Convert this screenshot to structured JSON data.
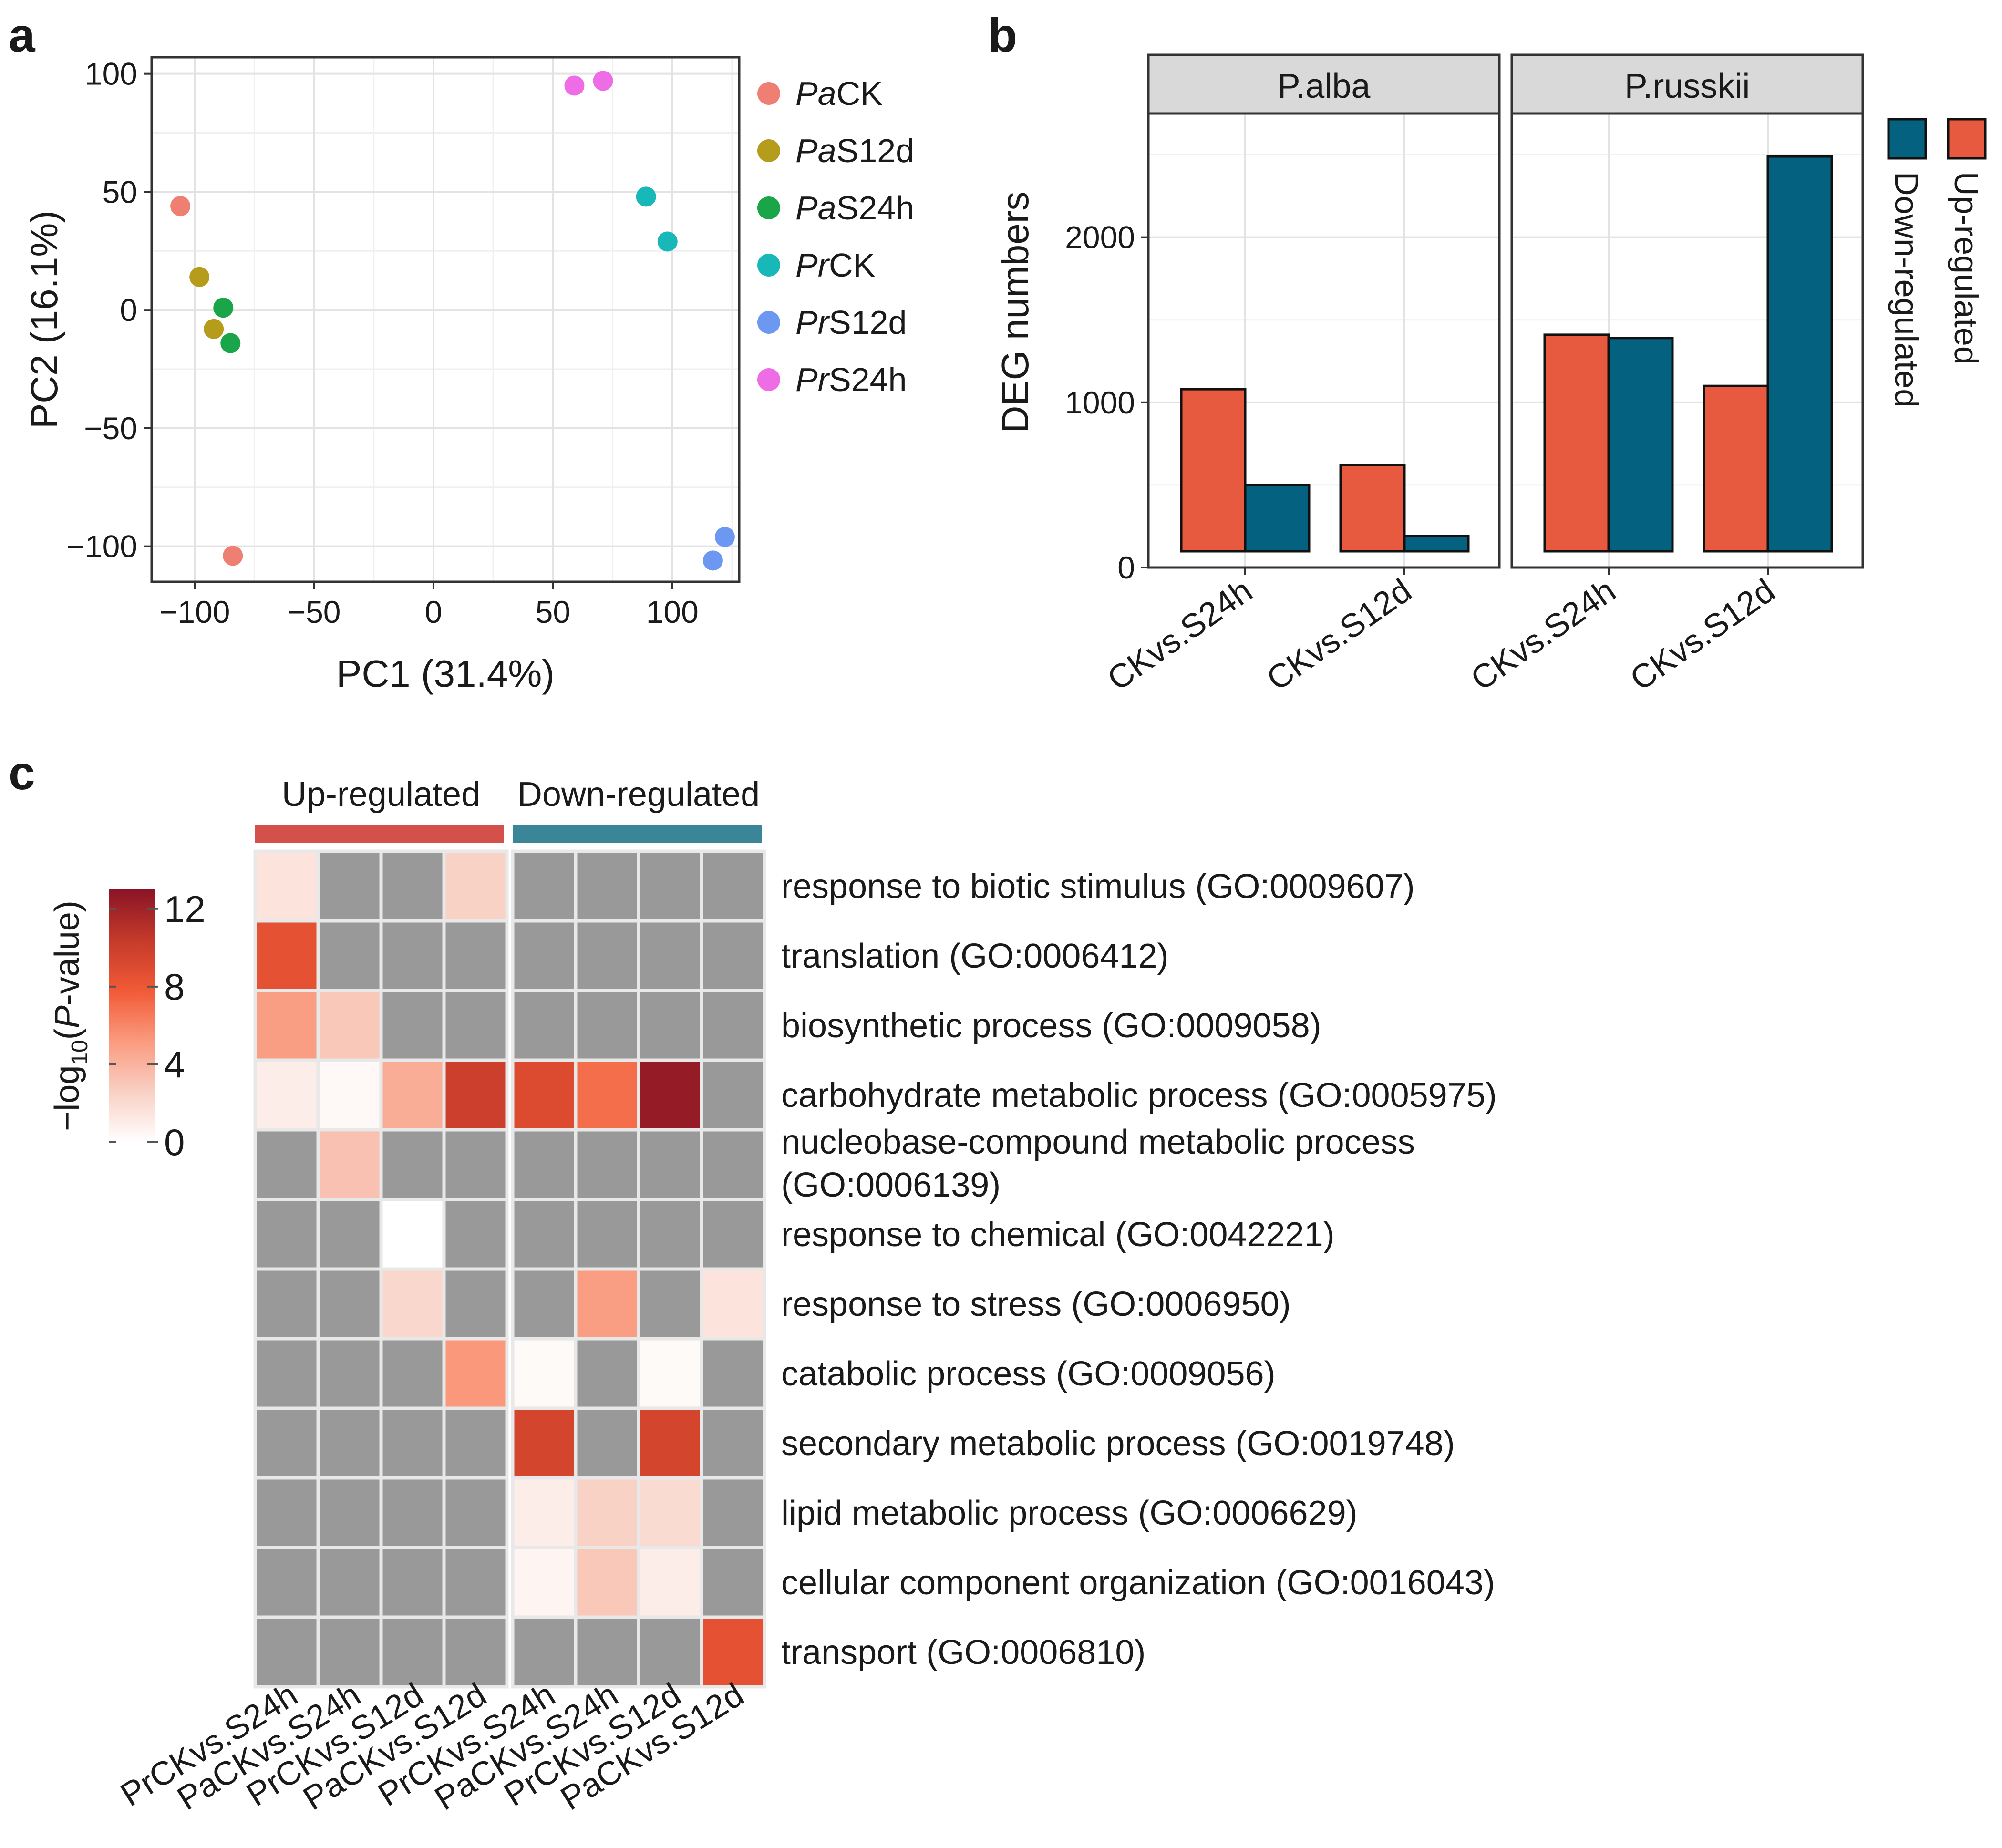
{
  "panel_labels": {
    "a": "a",
    "b": "b",
    "c": "c"
  },
  "chart_data": [
    {
      "type": "scatter",
      "panel": "a",
      "xlabel": "PC1 (31.4%)",
      "ylabel": "PC2 (16.1%)",
      "xlim": [
        -118,
        128
      ],
      "ylim": [
        -115,
        107
      ],
      "xticks": [
        -100,
        -50,
        0,
        50,
        100
      ],
      "yticks": [
        100,
        50,
        0,
        -50,
        -100
      ],
      "grid": true,
      "legend_position": "right",
      "series": [
        {
          "name": "PaCK",
          "italic": "Pa",
          "rest": "CK",
          "color": "#F07F73",
          "points": [
            [
              -106,
              44
            ],
            [
              -84,
              -104
            ]
          ]
        },
        {
          "name": "PaS12d",
          "italic": "Pa",
          "rest": "S12d",
          "color": "#B59C1A",
          "points": [
            [
              -98,
              14
            ],
            [
              -92,
              -8
            ]
          ]
        },
        {
          "name": "PaS24h",
          "italic": "Pa",
          "rest": "S24h",
          "color": "#1AA548",
          "points": [
            [
              -88,
              1
            ],
            [
              -85,
              -14
            ]
          ]
        },
        {
          "name": "PrCK",
          "italic": "Pr",
          "rest": "CK",
          "color": "#19B8B8",
          "points": [
            [
              89,
              48
            ],
            [
              98,
              29
            ]
          ]
        },
        {
          "name": "PrS12d",
          "italic": "Pr",
          "rest": "S12d",
          "color": "#6D98F2",
          "points": [
            [
              122,
              -96
            ],
            [
              117,
              -106
            ]
          ]
        },
        {
          "name": "PrS24h",
          "italic": "Pr",
          "rest": "S24h",
          "color": "#EE6CE6",
          "points": [
            [
              59,
              95
            ],
            [
              71,
              97
            ]
          ]
        }
      ]
    },
    {
      "type": "bar",
      "panel": "b",
      "ylabel": "DEG numbers",
      "ylim": [
        0,
        2750
      ],
      "yticks": [
        0,
        1000,
        2000
      ],
      "facets": [
        {
          "title": "P.alba",
          "categories": [
            "CKvs.S24h",
            "CKvs.S12d"
          ],
          "up": [
            1080,
            620
          ],
          "down": [
            500,
            190
          ]
        },
        {
          "title": "P.russkii",
          "categories": [
            "CKvs.S24h",
            "CKvs.S12d"
          ],
          "up": [
            1410,
            1100
          ],
          "down": [
            1390,
            2490
          ]
        }
      ],
      "series": [
        {
          "name": "Up-regulated",
          "color": "#E85A40"
        },
        {
          "name": "Down-regulated",
          "color": "#04617F"
        }
      ],
      "legend_position": "right"
    },
    {
      "type": "heatmap",
      "panel": "c",
      "groups": [
        {
          "label": "Up-regulated",
          "color": "#D4504A",
          "span": 4
        },
        {
          "label": "Down-regulated",
          "color": "#3A8598",
          "span": 4
        }
      ],
      "columns": [
        "PrCKvs.S24h",
        "PaCKvs.S24h",
        "PrCKvs.S12d",
        "PaCKvs.S12d",
        "PrCKvs.S24h",
        "PaCKvs.S24h",
        "PrCKvs.S12d",
        "PaCKvs.S12d"
      ],
      "rows": [
        {
          "label": "response to biotic stimulus (GO:0009607)",
          "values": [
            1.5,
            null,
            null,
            2.5,
            null,
            null,
            null,
            null
          ]
        },
        {
          "label": "translation (GO:0006412)",
          "values": [
            8.5,
            null,
            null,
            null,
            null,
            null,
            null,
            null
          ]
        },
        {
          "label": "biosynthetic process (GO:0009058)",
          "values": [
            5.0,
            3.0,
            null,
            null,
            null,
            null,
            null,
            null
          ]
        },
        {
          "label": "carbohydrate metabolic process (GO:0005975)",
          "values": [
            1.0,
            0.4,
            4.3,
            10.0,
            9.0,
            7.0,
            12.5,
            null
          ]
        },
        {
          "label": "nucleobase-compound metabolic process",
          "label2": "(GO:0006139)",
          "values": [
            null,
            3.3,
            null,
            null,
            null,
            null,
            null,
            null
          ]
        },
        {
          "label": "response to chemical (GO:0042221)",
          "values": [
            null,
            null,
            0.0,
            null,
            null,
            null,
            null,
            null
          ]
        },
        {
          "label": "response to stress (GO:0006950)",
          "values": [
            null,
            null,
            2.2,
            null,
            null,
            5.0,
            null,
            1.5
          ]
        },
        {
          "label": "catabolic process (GO:0009056)",
          "values": [
            null,
            null,
            null,
            5.3,
            0.3,
            null,
            0.3,
            null
          ]
        },
        {
          "label": "secondary metabolic process (GO:0019748)",
          "values": [
            null,
            null,
            null,
            null,
            9.5,
            null,
            9.5,
            null
          ]
        },
        {
          "label": "lipid metabolic process (GO:0006629)",
          "values": [
            null,
            null,
            null,
            null,
            1.0,
            2.5,
            2.0,
            null
          ]
        },
        {
          "label": "cellular component organization (GO:0016043)",
          "values": [
            null,
            null,
            null,
            null,
            0.6,
            3.0,
            1.0,
            null
          ]
        },
        {
          "label": "transport (GO:0006810)",
          "values": [
            null,
            null,
            null,
            null,
            null,
            null,
            null,
            8.5
          ]
        }
      ],
      "colorbar": {
        "title_prefix": "−log",
        "title_sub": "10",
        "title_open": "(",
        "title_italic": "P",
        "title_close": "-value)",
        "ticks": [
          0,
          4,
          8,
          12
        ],
        "range": [
          0,
          13
        ],
        "stops": [
          "#FFFFFF",
          "#F9D0C4",
          "#FA9A7E",
          "#F15A36",
          "#C43A2A",
          "#8A1426"
        ]
      },
      "na_color": "#999999"
    }
  ]
}
